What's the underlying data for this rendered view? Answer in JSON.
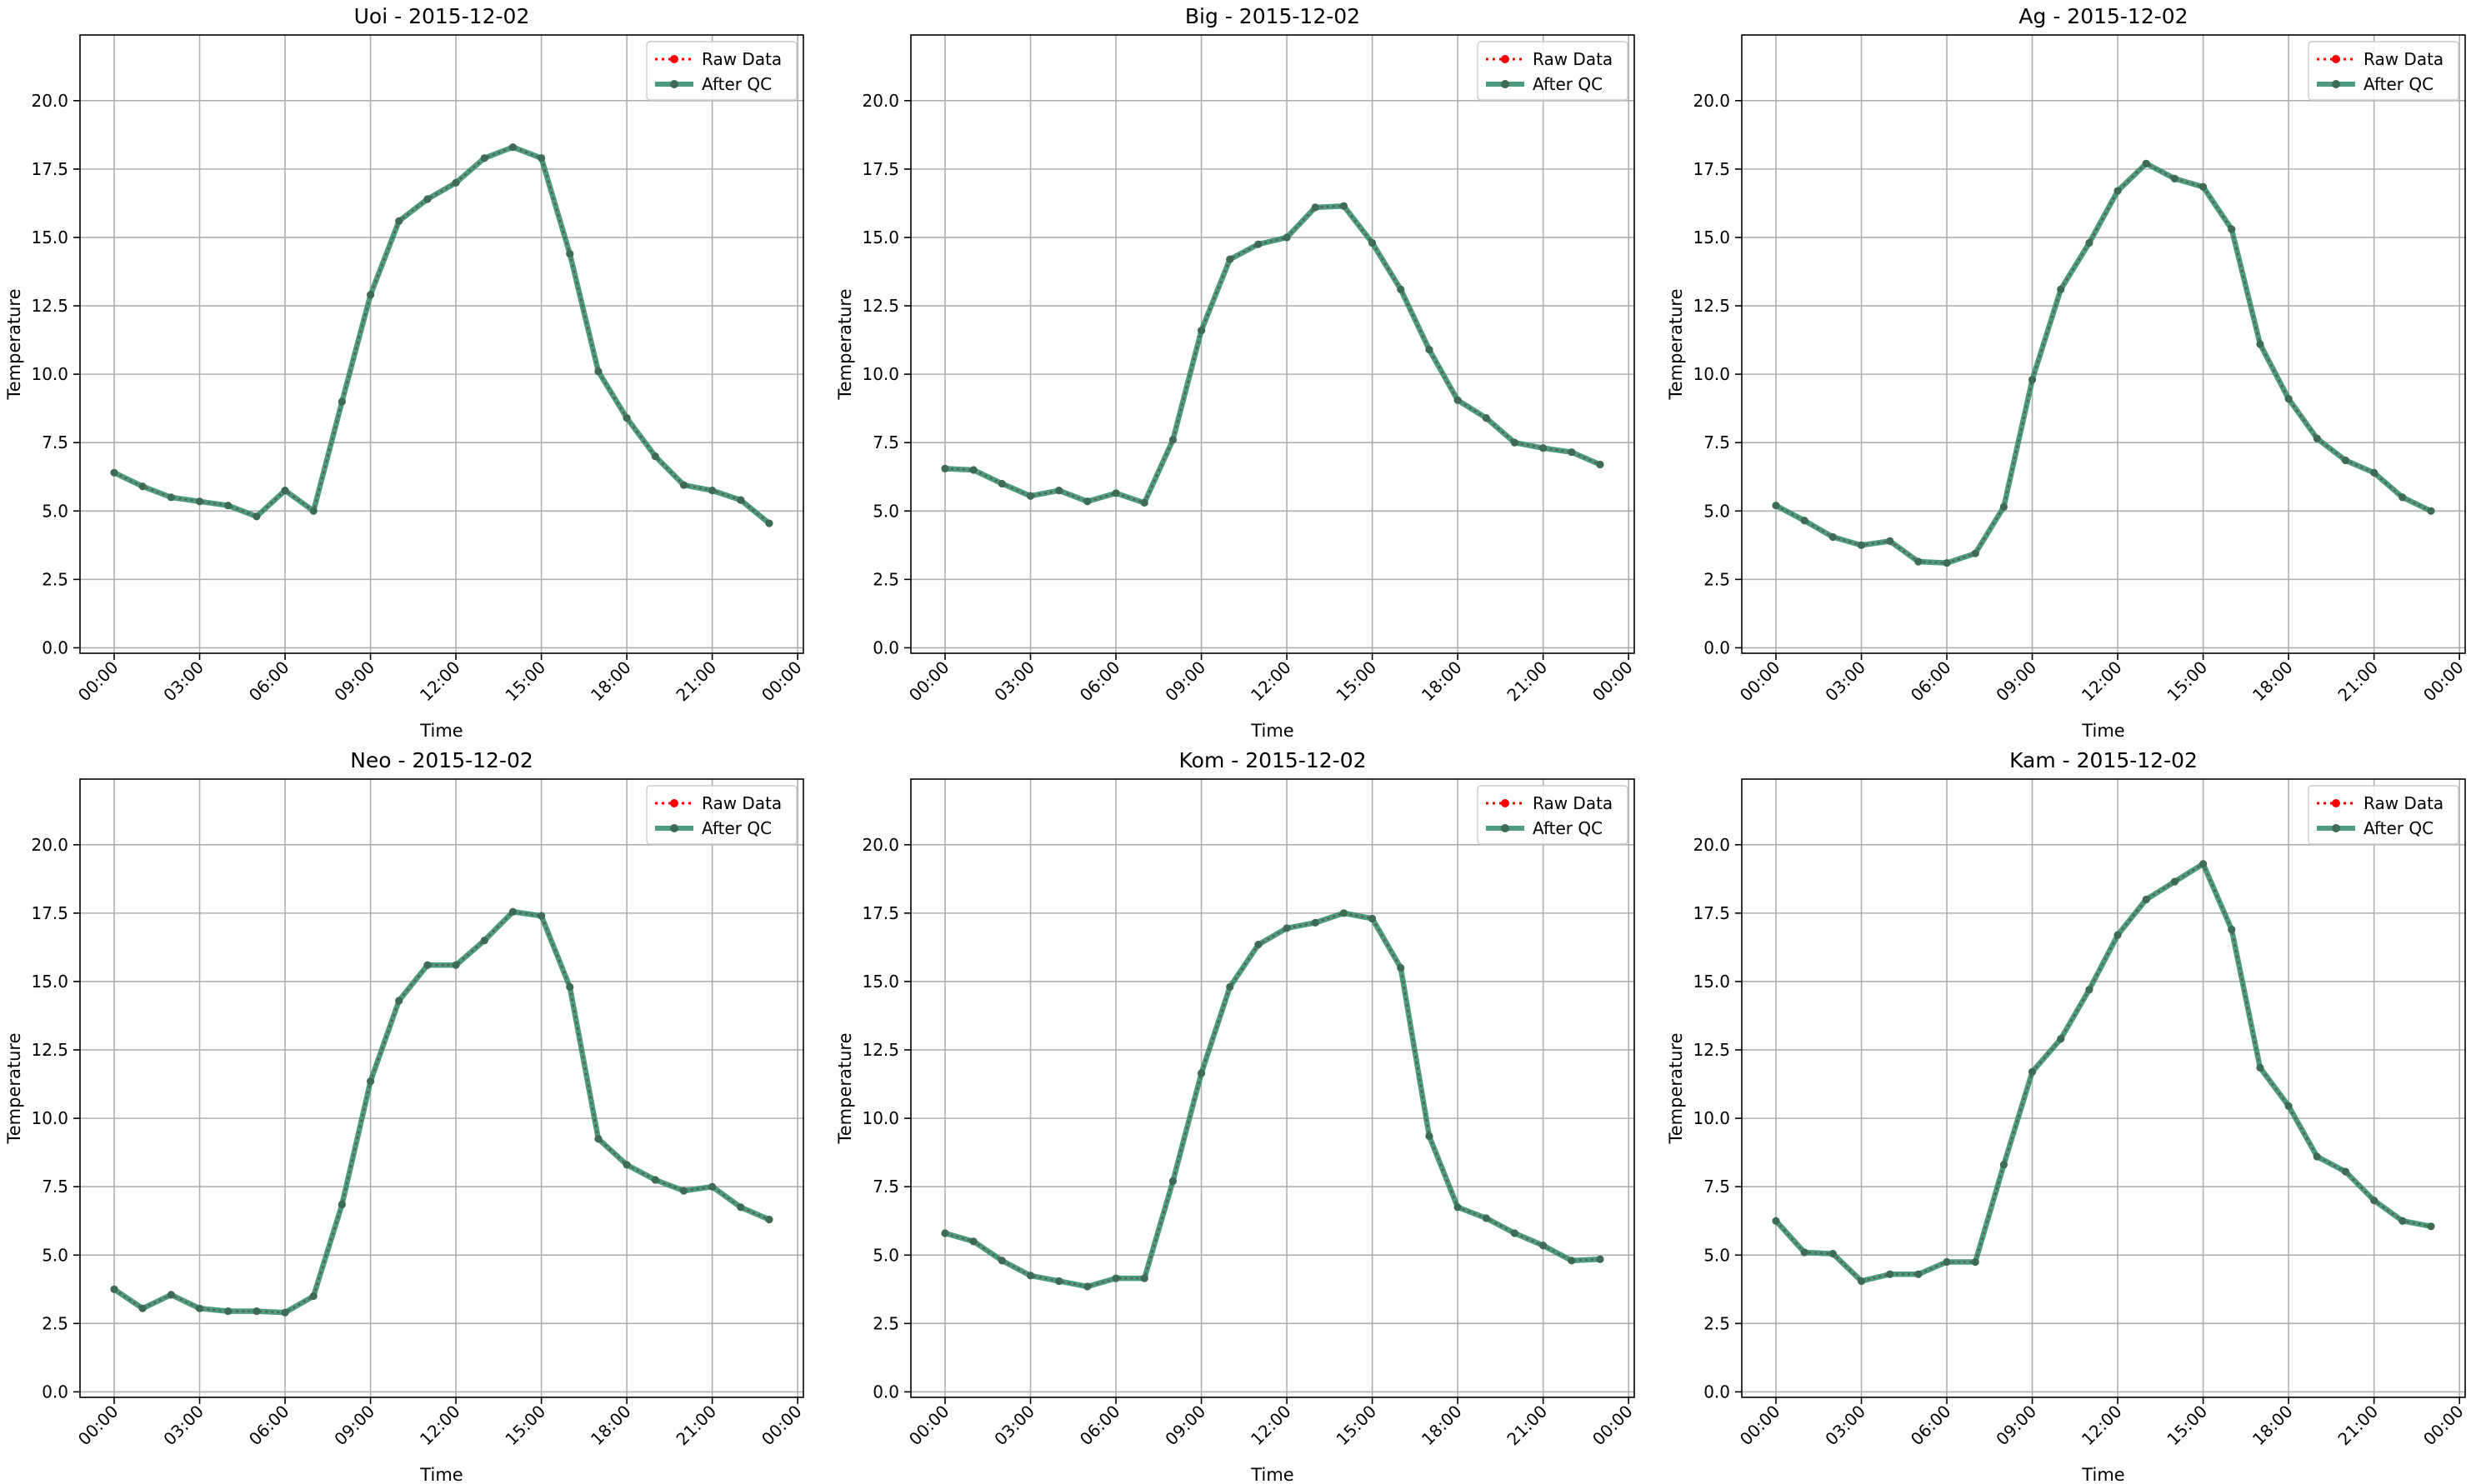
{
  "figure": {
    "legend_labels": {
      "raw": "Raw Data",
      "qc": "After QC"
    },
    "xlabel": "Time",
    "ylabel": "Temperature",
    "xticks": [
      "00:00",
      "03:00",
      "06:00",
      "09:00",
      "12:00",
      "15:00",
      "18:00",
      "21:00",
      "00:00"
    ],
    "yticks": [
      "0.0",
      "2.5",
      "5.0",
      "7.5",
      "10.0",
      "12.5",
      "15.0",
      "17.5",
      "20.0"
    ],
    "colors": {
      "raw": "#ff0000",
      "qc": "#2e8b6a",
      "grid": "#b0b0b0"
    }
  },
  "chart_data": [
    {
      "type": "line",
      "title": "Uoi - 2015-12-02",
      "xlabel": "Time",
      "ylabel": "Temperature",
      "xlim_hours": [
        -1.2,
        24.2
      ],
      "ylim": [
        -0.2,
        22.4
      ],
      "grid": true,
      "legend": "top-right",
      "x_hours": [
        0,
        1,
        2,
        3,
        4,
        5,
        6,
        7,
        8,
        9,
        10,
        11,
        12,
        13,
        14,
        15,
        16,
        17,
        18,
        19,
        20,
        21,
        22,
        23
      ],
      "series": [
        {
          "name": "Raw Data",
          "values": [
            6.4,
            5.9,
            5.5,
            5.35,
            5.2,
            4.8,
            5.75,
            5.0,
            9.0,
            12.9,
            15.6,
            16.4,
            17.0,
            17.9,
            18.3,
            17.9,
            14.4,
            10.1,
            8.4,
            7.0,
            5.95,
            5.75,
            5.4,
            4.55
          ]
        },
        {
          "name": "After QC",
          "values": [
            6.4,
            5.9,
            5.5,
            5.35,
            5.2,
            4.8,
            5.75,
            5.0,
            9.0,
            12.9,
            15.6,
            16.4,
            17.0,
            17.9,
            18.3,
            17.9,
            14.4,
            10.1,
            8.4,
            7.0,
            5.95,
            5.75,
            5.4,
            4.55
          ]
        }
      ]
    },
    {
      "type": "line",
      "title": "Big - 2015-12-02",
      "xlabel": "Time",
      "ylabel": "Temperature",
      "xlim_hours": [
        -1.2,
        24.2
      ],
      "ylim": [
        -0.2,
        22.4
      ],
      "grid": true,
      "legend": "top-right",
      "x_hours": [
        0,
        1,
        2,
        3,
        4,
        5,
        6,
        7,
        8,
        9,
        10,
        11,
        12,
        13,
        14,
        15,
        16,
        17,
        18,
        19,
        20,
        21,
        22,
        23
      ],
      "series": [
        {
          "name": "Raw Data",
          "values": [
            6.55,
            6.5,
            6.0,
            5.55,
            5.75,
            5.35,
            5.65,
            5.3,
            7.6,
            11.6,
            14.2,
            14.75,
            15.0,
            16.1,
            16.15,
            14.8,
            13.1,
            10.9,
            9.05,
            8.4,
            7.5,
            7.3,
            7.15,
            6.7
          ]
        },
        {
          "name": "After QC",
          "values": [
            6.55,
            6.5,
            6.0,
            5.55,
            5.75,
            5.35,
            5.65,
            5.3,
            7.6,
            11.6,
            14.2,
            14.75,
            15.0,
            16.1,
            16.15,
            14.8,
            13.1,
            10.9,
            9.05,
            8.4,
            7.5,
            7.3,
            7.15,
            6.7
          ]
        }
      ]
    },
    {
      "type": "line",
      "title": "Ag - 2015-12-02",
      "xlabel": "Time",
      "ylabel": "Temperature",
      "xlim_hours": [
        -1.2,
        24.2
      ],
      "ylim": [
        -0.2,
        22.4
      ],
      "grid": true,
      "legend": "top-right",
      "x_hours": [
        0,
        1,
        2,
        3,
        4,
        5,
        6,
        7,
        8,
        9,
        10,
        11,
        12,
        13,
        14,
        15,
        16,
        17,
        18,
        19,
        20,
        21,
        22,
        23
      ],
      "series": [
        {
          "name": "Raw Data",
          "values": [
            5.2,
            4.65,
            4.05,
            3.75,
            3.9,
            3.15,
            3.1,
            3.45,
            5.15,
            9.8,
            13.1,
            14.8,
            16.7,
            17.7,
            17.15,
            16.85,
            15.3,
            11.1,
            9.1,
            7.65,
            6.85,
            6.4,
            5.5,
            5.0
          ]
        },
        {
          "name": "After QC",
          "values": [
            5.2,
            4.65,
            4.05,
            3.75,
            3.9,
            3.15,
            3.1,
            3.45,
            5.15,
            9.8,
            13.1,
            14.8,
            16.7,
            17.7,
            17.15,
            16.85,
            15.3,
            11.1,
            9.1,
            7.65,
            6.85,
            6.4,
            5.5,
            5.0
          ]
        }
      ]
    },
    {
      "type": "line",
      "title": "Neo - 2015-12-02",
      "xlabel": "Time",
      "ylabel": "Temperature",
      "xlim_hours": [
        -1.2,
        24.2
      ],
      "ylim": [
        -0.2,
        22.4
      ],
      "grid": true,
      "legend": "top-right",
      "x_hours": [
        0,
        1,
        2,
        3,
        4,
        5,
        6,
        7,
        8,
        9,
        10,
        11,
        12,
        13,
        14,
        15,
        16,
        17,
        18,
        19,
        20,
        21,
        22,
        23
      ],
      "series": [
        {
          "name": "Raw Data",
          "values": [
            3.75,
            3.05,
            3.55,
            3.05,
            2.95,
            2.95,
            2.9,
            3.5,
            6.85,
            11.35,
            14.3,
            15.6,
            15.6,
            16.5,
            17.55,
            17.4,
            14.8,
            9.25,
            8.3,
            7.75,
            7.35,
            7.5,
            6.75,
            6.3
          ]
        },
        {
          "name": "After QC",
          "values": [
            3.75,
            3.05,
            3.55,
            3.05,
            2.95,
            2.95,
            2.9,
            3.5,
            6.85,
            11.35,
            14.3,
            15.6,
            15.6,
            16.5,
            17.55,
            17.4,
            14.8,
            9.25,
            8.3,
            7.75,
            7.35,
            7.5,
            6.75,
            6.3
          ]
        }
      ]
    },
    {
      "type": "line",
      "title": "Kom - 2015-12-02",
      "xlabel": "Time",
      "ylabel": "Temperature",
      "xlim_hours": [
        -1.2,
        24.2
      ],
      "ylim": [
        -0.2,
        22.4
      ],
      "grid": true,
      "legend": "top-right",
      "x_hours": [
        0,
        1,
        2,
        3,
        4,
        5,
        6,
        7,
        8,
        9,
        10,
        11,
        12,
        13,
        14,
        15,
        16,
        17,
        18,
        19,
        20,
        21,
        22,
        23
      ],
      "series": [
        {
          "name": "Raw Data",
          "values": [
            5.8,
            5.5,
            4.8,
            4.25,
            4.05,
            3.85,
            4.15,
            4.15,
            7.7,
            11.65,
            14.8,
            16.35,
            16.95,
            17.15,
            17.5,
            17.3,
            15.5,
            9.35,
            6.75,
            6.35,
            5.8,
            5.35,
            4.8,
            4.85
          ]
        },
        {
          "name": "After QC",
          "values": [
            5.8,
            5.5,
            4.8,
            4.25,
            4.05,
            3.85,
            4.15,
            4.15,
            7.7,
            11.65,
            14.8,
            16.35,
            16.95,
            17.15,
            17.5,
            17.3,
            15.5,
            9.35,
            6.75,
            6.35,
            5.8,
            5.35,
            4.8,
            4.85
          ]
        }
      ]
    },
    {
      "type": "line",
      "title": "Kam - 2015-12-02",
      "xlabel": "Time",
      "ylabel": "Temperature",
      "xlim_hours": [
        -1.2,
        24.2
      ],
      "ylim": [
        -0.2,
        22.4
      ],
      "grid": true,
      "legend": "top-right",
      "x_hours": [
        0,
        1,
        2,
        3,
        4,
        5,
        6,
        7,
        8,
        9,
        10,
        11,
        12,
        13,
        14,
        15,
        16,
        17,
        18,
        19,
        20,
        21,
        22,
        23
      ],
      "series": [
        {
          "name": "Raw Data",
          "values": [
            6.25,
            5.1,
            5.05,
            4.05,
            4.3,
            4.3,
            4.75,
            4.75,
            8.3,
            11.7,
            12.9,
            14.7,
            16.7,
            18.0,
            18.65,
            19.3,
            16.9,
            11.85,
            10.45,
            8.6,
            8.05,
            7.0,
            6.25,
            6.05
          ]
        },
        {
          "name": "After QC",
          "values": [
            6.25,
            5.1,
            5.05,
            4.05,
            4.3,
            4.3,
            4.75,
            4.75,
            8.3,
            11.7,
            12.9,
            14.7,
            16.7,
            18.0,
            18.65,
            19.3,
            16.9,
            11.85,
            10.45,
            8.6,
            8.05,
            7.0,
            6.25,
            6.05
          ]
        }
      ]
    }
  ]
}
